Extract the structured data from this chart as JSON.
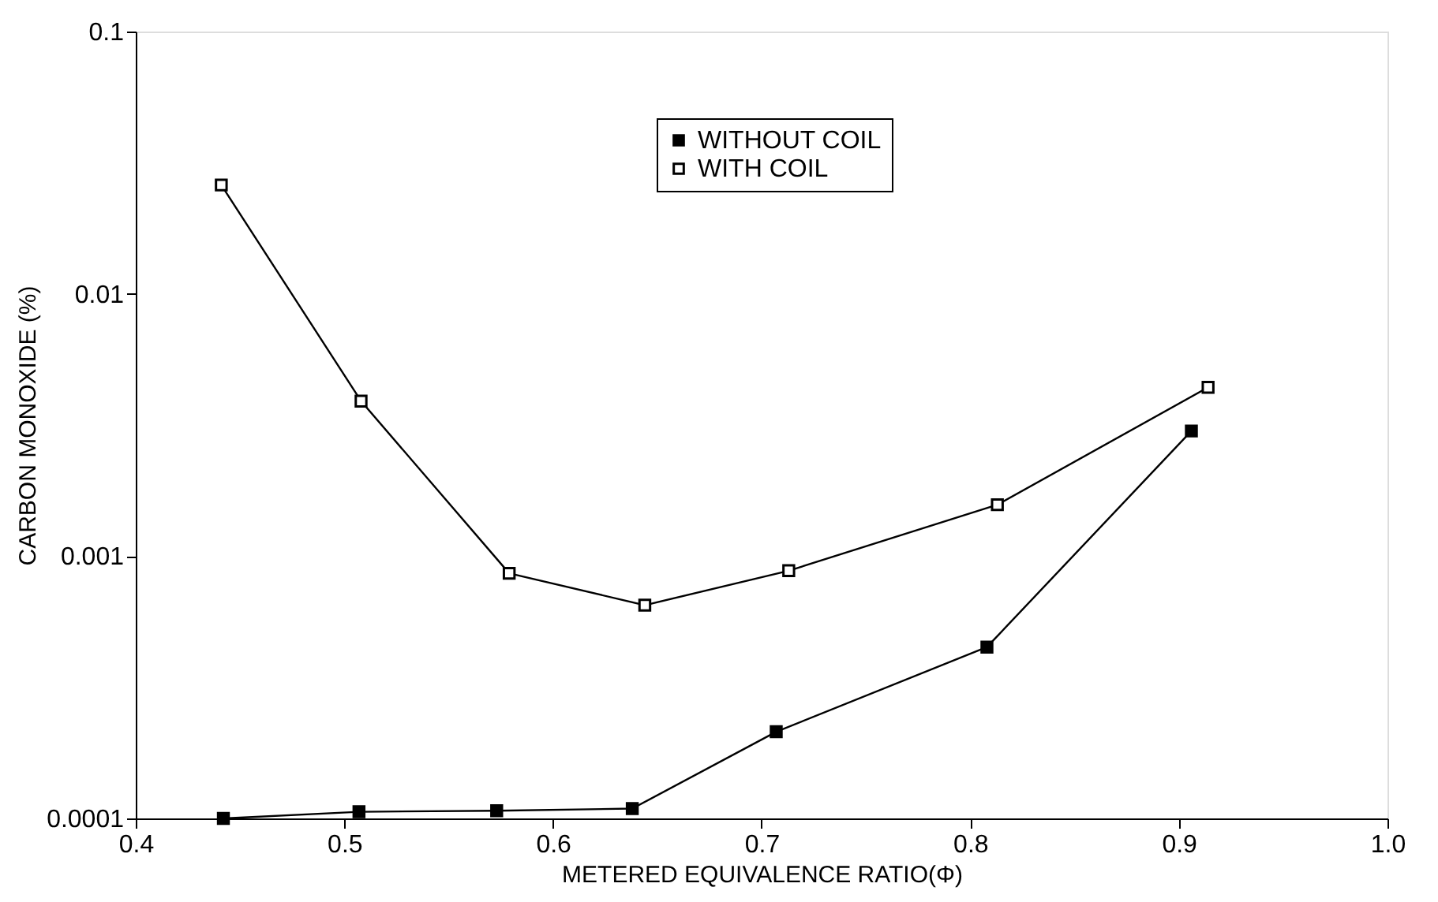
{
  "chart_data": {
    "type": "line",
    "xlabel": "METERED EQUIVALENCE RATIO(Φ)",
    "ylabel": "CARBON MONOXIDE (%)",
    "log": "y",
    "xlim": [
      0.4,
      1.0
    ],
    "xticks": [
      0.4,
      0.5,
      0.6,
      0.7,
      0.8,
      0.9,
      {
        "value": 1.0,
        "label": "1.0"
      }
    ],
    "ylim": [
      0.0001,
      0.1
    ],
    "yticks": [
      {
        "value": 0.0001,
        "label": "0.0001"
      },
      0.001,
      0.01,
      0.1
    ],
    "grid": false,
    "legend": "top",
    "marker": "square",
    "line_style": "solid",
    "series": [
      {
        "name": "WITHOUT COIL",
        "color": "#000000",
        "x": [
          0.442,
          0.507,
          0.573,
          0.638,
          0.707,
          0.808,
          0.906
        ],
        "values": [
          0.0001,
          0.000106,
          0.000107,
          0.000109,
          0.000214,
          0.00045,
          0.003
        ]
      },
      {
        "name": "WITH COIL",
        "color": "#000000",
        "x": [
          0.441,
          0.508,
          0.579,
          0.644,
          0.713,
          0.813,
          0.914
        ],
        "values": [
          0.026,
          0.0039,
          0.00086,
          0.00065,
          0.00088,
          0.00157,
          0.0044
        ]
      }
    ]
  }
}
